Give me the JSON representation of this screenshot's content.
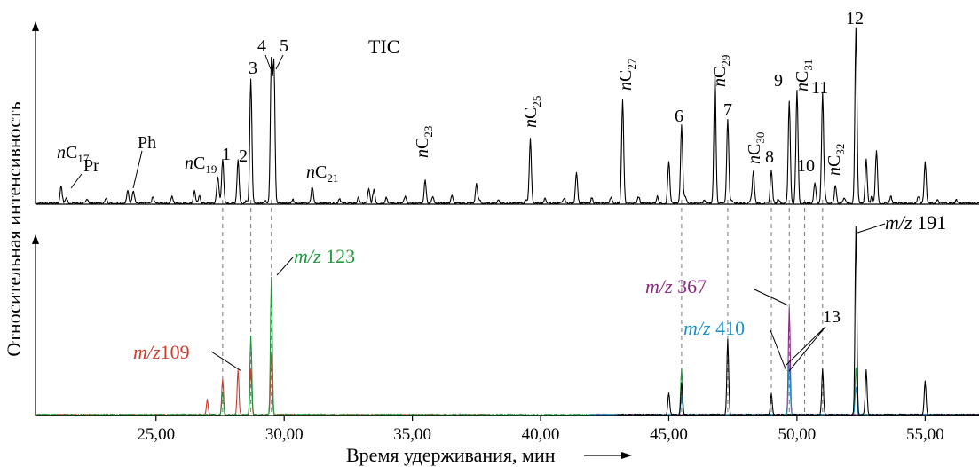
{
  "chart_data": {
    "type": "line",
    "xlabel": "Время удерживания, мин",
    "ylabel": "Относительная интенсивность",
    "xlim": [
      20.3,
      57.1
    ],
    "xticks": [
      "25,00",
      "30,00",
      "35,00",
      "40,00",
      "45,00",
      "50,00",
      "55,00"
    ],
    "xtick_values": [
      25,
      30,
      35,
      40,
      45,
      50,
      55
    ],
    "panels": [
      {
        "name": "TIC",
        "label": "TIC",
        "ylim": [
          0,
          100
        ],
        "color": "#000000",
        "peaks": [
          {
            "t": 21.3,
            "h": 10
          },
          {
            "t": 21.5,
            "h": 3
          },
          {
            "t": 23.9,
            "h": 7
          },
          {
            "t": 24.1,
            "h": 5
          },
          {
            "t": 26.5,
            "h": 7
          },
          {
            "t": 27.4,
            "h": 12
          },
          {
            "t": 27.6,
            "h": 25
          },
          {
            "t": 28.2,
            "h": 25
          },
          {
            "t": 28.7,
            "h": 71
          },
          {
            "t": 29.5,
            "h": 80
          },
          {
            "t": 29.6,
            "h": 79
          },
          {
            "t": 31.1,
            "h": 7
          },
          {
            "t": 33.3,
            "h": 8
          },
          {
            "t": 33.5,
            "h": 8
          },
          {
            "t": 35.5,
            "h": 13
          },
          {
            "t": 37.5,
            "h": 11
          },
          {
            "t": 39.6,
            "h": 37
          },
          {
            "t": 41.4,
            "h": 18
          },
          {
            "t": 43.2,
            "h": 59
          },
          {
            "t": 45.0,
            "h": 24
          },
          {
            "t": 45.5,
            "h": 45
          },
          {
            "t": 46.8,
            "h": 74
          },
          {
            "t": 47.3,
            "h": 48
          },
          {
            "t": 48.3,
            "h": 18
          },
          {
            "t": 49.0,
            "h": 19
          },
          {
            "t": 49.7,
            "h": 58
          },
          {
            "t": 50.0,
            "h": 62
          },
          {
            "t": 50.7,
            "h": 12
          },
          {
            "t": 51.0,
            "h": 63
          },
          {
            "t": 51.5,
            "h": 10
          },
          {
            "t": 52.3,
            "h": 100
          },
          {
            "t": 52.7,
            "h": 25
          },
          {
            "t": 53.1,
            "h": 30
          },
          {
            "t": 55.0,
            "h": 23
          }
        ]
      },
      {
        "name": "m/z",
        "ylim": [
          0,
          100
        ],
        "series": [
          {
            "name": "m/z 109",
            "label_prefix": "m/z",
            "label_value": "109",
            "color": "#d13a2a",
            "peaks": [
              {
                "t": 27.0,
                "h": 8
              },
              {
                "t": 27.6,
                "h": 19
              },
              {
                "t": 28.2,
                "h": 24
              },
              {
                "t": 28.7,
                "h": 24
              },
              {
                "t": 29.5,
                "h": 32
              }
            ]
          },
          {
            "name": "m/z 123",
            "label_prefix": "m/z",
            "label_value": "123",
            "color": "#1e9a3c",
            "peaks": [
              {
                "t": 27.6,
                "h": 12
              },
              {
                "t": 28.7,
                "h": 42
              },
              {
                "t": 29.5,
                "h": 73
              },
              {
                "t": 45.5,
                "h": 25
              },
              {
                "t": 52.3,
                "h": 25
              }
            ]
          },
          {
            "name": "m/z 367",
            "label_prefix": "m/z",
            "label_value": "367",
            "color": "#8b2a82",
            "peaks": [
              {
                "t": 49.7,
                "h": 57
              }
            ]
          },
          {
            "name": "m/z 410",
            "label_prefix": "m/z",
            "label_value": "410",
            "color": "#1b8fcc",
            "peaks": [
              {
                "t": 45.5,
                "h": 10
              },
              {
                "t": 49.7,
                "h": 27
              },
              {
                "t": 52.3,
                "h": 15
              }
            ]
          },
          {
            "name": "m/z 191",
            "label_prefix": "m/z",
            "label_value": "191",
            "color": "#000000",
            "peaks": [
              {
                "t": 45.0,
                "h": 12
              },
              {
                "t": 45.5,
                "h": 17
              },
              {
                "t": 47.3,
                "h": 40
              },
              {
                "t": 49.0,
                "h": 11
              },
              {
                "t": 51.0,
                "h": 24
              },
              {
                "t": 52.3,
                "h": 100
              },
              {
                "t": 52.7,
                "h": 24
              },
              {
                "t": 55.0,
                "h": 18
              }
            ]
          }
        ]
      }
    ],
    "guides": [
      27.6,
      28.7,
      29.5,
      45.5,
      47.3,
      49.0,
      49.7,
      50.3,
      51.0
    ],
    "annotations": [
      {
        "id": "nC17",
        "prefix": "nC",
        "sub": "17",
        "t": 21.3
      },
      {
        "id": "Pr",
        "text": "Pr",
        "t": 21.5
      },
      {
        "id": "Ph",
        "text": "Ph",
        "t": 24.1
      },
      {
        "id": "nC19",
        "prefix": "nC",
        "sub": "19",
        "t": 26.5
      },
      {
        "id": "p1",
        "text": "1",
        "t": 27.6
      },
      {
        "id": "p2",
        "text": "2",
        "t": 28.2
      },
      {
        "id": "p3",
        "text": "3",
        "t": 28.7
      },
      {
        "id": "p4",
        "text": "4",
        "t": 29.5
      },
      {
        "id": "p5",
        "text": "5",
        "t": 29.6
      },
      {
        "id": "nC21",
        "prefix": "nC",
        "sub": "21",
        "t": 31.1
      },
      {
        "id": "nC23",
        "prefix": "nC",
        "sub": "23",
        "t": 35.5
      },
      {
        "id": "nC25",
        "prefix": "nC",
        "sub": "25",
        "t": 39.6
      },
      {
        "id": "nC27",
        "prefix": "nC",
        "sub": "27",
        "t": 43.2
      },
      {
        "id": "p6",
        "text": "6",
        "t": 45.5
      },
      {
        "id": "nC29",
        "prefix": "nC",
        "sub": "29",
        "t": 46.8
      },
      {
        "id": "p7",
        "text": "7",
        "t": 47.3
      },
      {
        "id": "nC30",
        "prefix": "nC",
        "sub": "30",
        "t": 48.3
      },
      {
        "id": "p8",
        "text": "8",
        "t": 49.0
      },
      {
        "id": "p9",
        "text": "9",
        "t": 49.7
      },
      {
        "id": "nC31",
        "prefix": "nC",
        "sub": "31",
        "t": 50.0
      },
      {
        "id": "p10",
        "text": "10",
        "t": 50.7
      },
      {
        "id": "p11",
        "text": "11",
        "t": 51.0
      },
      {
        "id": "nC32",
        "prefix": "nC",
        "sub": "32",
        "t": 51.5
      },
      {
        "id": "p12",
        "text": "12",
        "t": 52.3
      },
      {
        "id": "p13",
        "text": "13",
        "t": 49.7
      }
    ]
  }
}
